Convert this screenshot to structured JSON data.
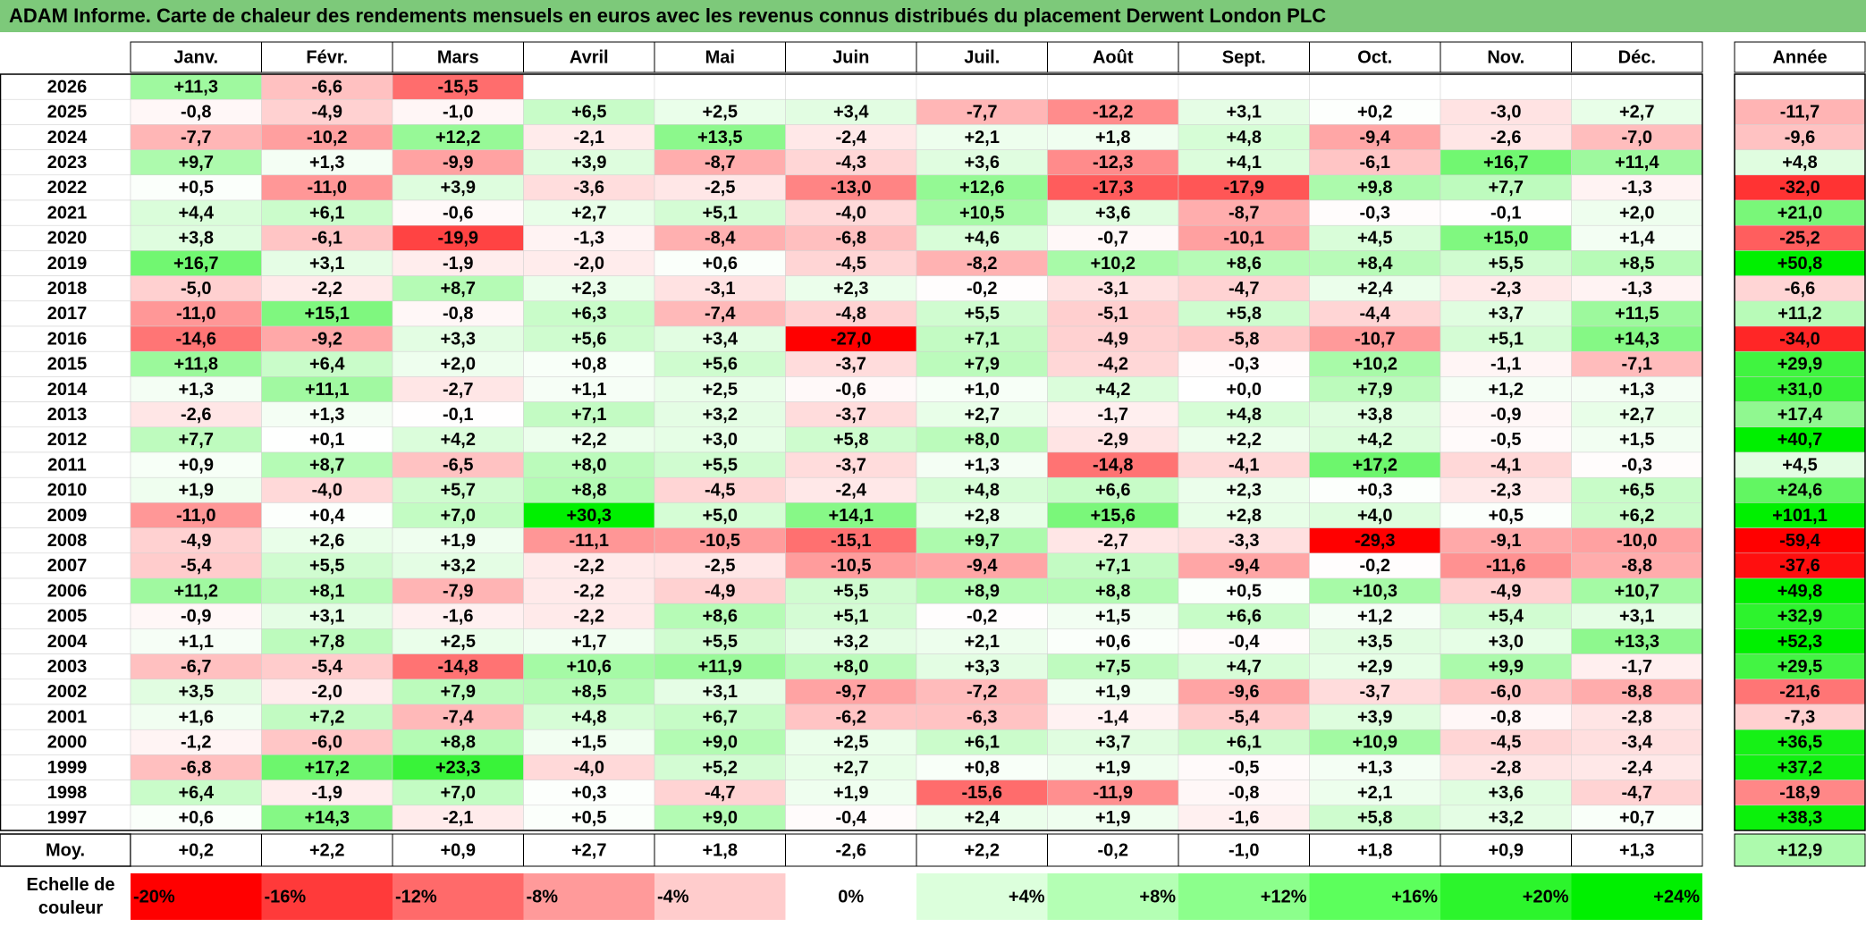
{
  "title": "ADAM Informe. Carte de chaleur des rendements mensuels en euros avec les revenus connus distribués du placement Derwent London PLC",
  "chart_data": {
    "type": "heatmap",
    "columns": [
      "Janv.",
      "Févr.",
      "Mars",
      "Avril",
      "Mai",
      "Juin",
      "Juil.",
      "Août",
      "Sept.",
      "Oct.",
      "Nov.",
      "Déc."
    ],
    "year_column_label": "Année",
    "rows": [
      {
        "year": "2026",
        "months": [
          "+11,3",
          "-6,6",
          "-15,5",
          "",
          "",
          "",
          "",
          "",
          "",
          "",
          "",
          ""
        ],
        "annual": ""
      },
      {
        "year": "2025",
        "months": [
          "-0,8",
          "-4,9",
          "-1,0",
          "+6,5",
          "+2,5",
          "+3,4",
          "-7,7",
          "-12,2",
          "+3,1",
          "+0,2",
          "-3,0",
          "+2,7"
        ],
        "annual": "-11,7"
      },
      {
        "year": "2024",
        "months": [
          "-7,7",
          "-10,2",
          "+12,2",
          "-2,1",
          "+13,5",
          "-2,4",
          "+2,1",
          "+1,8",
          "+4,8",
          "-9,4",
          "-2,6",
          "-7,0"
        ],
        "annual": "-9,6"
      },
      {
        "year": "2023",
        "months": [
          "+9,7",
          "+1,3",
          "-9,9",
          "+3,9",
          "-8,7",
          "-4,3",
          "+3,6",
          "-12,3",
          "+4,1",
          "-6,1",
          "+16,7",
          "+11,4"
        ],
        "annual": "+4,8"
      },
      {
        "year": "2022",
        "months": [
          "+0,5",
          "-11,0",
          "+3,9",
          "-3,6",
          "-2,5",
          "-13,0",
          "+12,6",
          "-17,3",
          "-17,9",
          "+9,8",
          "+7,7",
          "-1,3"
        ],
        "annual": "-32,0"
      },
      {
        "year": "2021",
        "months": [
          "+4,4",
          "+6,1",
          "-0,6",
          "+2,7",
          "+5,1",
          "-4,0",
          "+10,5",
          "+3,6",
          "-8,7",
          "-0,3",
          "-0,1",
          "+2,0"
        ],
        "annual": "+21,0"
      },
      {
        "year": "2020",
        "months": [
          "+3,8",
          "-6,1",
          "-19,9",
          "-1,3",
          "-8,4",
          "-6,8",
          "+4,6",
          "-0,7",
          "-10,1",
          "+4,5",
          "+15,0",
          "+1,4"
        ],
        "annual": "-25,2"
      },
      {
        "year": "2019",
        "months": [
          "+16,7",
          "+3,1",
          "-1,9",
          "-2,0",
          "+0,6",
          "-4,5",
          "-8,2",
          "+10,2",
          "+8,6",
          "+8,4",
          "+5,5",
          "+8,5"
        ],
        "annual": "+50,8"
      },
      {
        "year": "2018",
        "months": [
          "-5,0",
          "-2,2",
          "+8,7",
          "+2,3",
          "-3,1",
          "+2,3",
          "-0,2",
          "-3,1",
          "-4,7",
          "+2,4",
          "-2,3",
          "-1,3"
        ],
        "annual": "-6,6"
      },
      {
        "year": "2017",
        "months": [
          "-11,0",
          "+15,1",
          "-0,8",
          "+6,3",
          "-7,4",
          "-4,8",
          "+5,5",
          "-5,1",
          "+5,8",
          "-4,4",
          "+3,7",
          "+11,5"
        ],
        "annual": "+11,2"
      },
      {
        "year": "2016",
        "months": [
          "-14,6",
          "-9,2",
          "+3,3",
          "+5,6",
          "+3,4",
          "-27,0",
          "+7,1",
          "-4,9",
          "-5,8",
          "-10,7",
          "+5,1",
          "+14,3"
        ],
        "annual": "-34,0"
      },
      {
        "year": "2015",
        "months": [
          "+11,8",
          "+6,4",
          "+2,0",
          "+0,8",
          "+5,6",
          "-3,7",
          "+7,9",
          "-4,2",
          "-0,3",
          "+10,2",
          "-1,1",
          "-7,1"
        ],
        "annual": "+29,9"
      },
      {
        "year": "2014",
        "months": [
          "+1,3",
          "+11,1",
          "-2,7",
          "+1,1",
          "+2,5",
          "-0,6",
          "+1,0",
          "+4,2",
          "+0,0",
          "+7,9",
          "+1,2",
          "+1,3"
        ],
        "annual": "+31,0"
      },
      {
        "year": "2013",
        "months": [
          "-2,6",
          "+1,3",
          "-0,1",
          "+7,1",
          "+3,2",
          "-3,7",
          "+2,7",
          "-1,7",
          "+4,8",
          "+3,8",
          "-0,9",
          "+2,7"
        ],
        "annual": "+17,4"
      },
      {
        "year": "2012",
        "months": [
          "+7,7",
          "+0,1",
          "+4,2",
          "+2,2",
          "+3,0",
          "+5,8",
          "+8,0",
          "-2,9",
          "+2,2",
          "+4,2",
          "-0,5",
          "+1,5"
        ],
        "annual": "+40,7"
      },
      {
        "year": "2011",
        "months": [
          "+0,9",
          "+8,7",
          "-6,5",
          "+8,0",
          "+5,5",
          "-3,7",
          "+1,3",
          "-14,8",
          "-4,1",
          "+17,2",
          "-4,1",
          "-0,3"
        ],
        "annual": "+4,5"
      },
      {
        "year": "2010",
        "months": [
          "+1,9",
          "-4,0",
          "+5,7",
          "+8,8",
          "-4,5",
          "-2,4",
          "+4,8",
          "+6,6",
          "+2,3",
          "+0,3",
          "-2,3",
          "+6,5"
        ],
        "annual": "+24,6"
      },
      {
        "year": "2009",
        "months": [
          "-11,0",
          "+0,4",
          "+7,0",
          "+30,3",
          "+5,0",
          "+14,1",
          "+2,8",
          "+15,6",
          "+2,8",
          "+4,0",
          "+0,5",
          "+6,2"
        ],
        "annual": "+101,1"
      },
      {
        "year": "2008",
        "months": [
          "-4,9",
          "+2,6",
          "+1,9",
          "-11,1",
          "-10,5",
          "-15,1",
          "+9,7",
          "-2,7",
          "-3,3",
          "-29,3",
          "-9,1",
          "-10,0"
        ],
        "annual": "-59,4"
      },
      {
        "year": "2007",
        "months": [
          "-5,4",
          "+5,5",
          "+3,2",
          "-2,2",
          "-2,5",
          "-10,5",
          "-9,4",
          "+7,1",
          "-9,4",
          "-0,2",
          "-11,6",
          "-8,8"
        ],
        "annual": "-37,6"
      },
      {
        "year": "2006",
        "months": [
          "+11,2",
          "+8,1",
          "-7,9",
          "-2,2",
          "-4,9",
          "+5,5",
          "+8,9",
          "+8,8",
          "+0,5",
          "+10,3",
          "-4,9",
          "+10,7"
        ],
        "annual": "+49,8"
      },
      {
        "year": "2005",
        "months": [
          "-0,9",
          "+3,1",
          "-1,6",
          "-2,2",
          "+8,6",
          "+5,1",
          "-0,2",
          "+1,5",
          "+6,6",
          "+1,2",
          "+5,4",
          "+3,1"
        ],
        "annual": "+32,9"
      },
      {
        "year": "2004",
        "months": [
          "+1,1",
          "+7,8",
          "+2,5",
          "+1,7",
          "+5,5",
          "+3,2",
          "+2,1",
          "+0,6",
          "-0,4",
          "+3,5",
          "+3,0",
          "+13,3"
        ],
        "annual": "+52,3"
      },
      {
        "year": "2003",
        "months": [
          "-6,7",
          "-5,4",
          "-14,8",
          "+10,6",
          "+11,9",
          "+8,0",
          "+3,3",
          "+7,5",
          "+4,7",
          "+2,9",
          "+9,9",
          "-1,7"
        ],
        "annual": "+29,5"
      },
      {
        "year": "2002",
        "months": [
          "+3,5",
          "-2,0",
          "+7,9",
          "+8,5",
          "+3,1",
          "-9,7",
          "-7,2",
          "+1,9",
          "-9,6",
          "-3,7",
          "-6,0",
          "-8,8"
        ],
        "annual": "-21,6"
      },
      {
        "year": "2001",
        "months": [
          "+1,6",
          "+7,2",
          "-7,4",
          "+4,8",
          "+6,7",
          "-6,2",
          "-6,3",
          "-1,4",
          "-5,4",
          "+3,9",
          "-0,8",
          "-2,8"
        ],
        "annual": "-7,3"
      },
      {
        "year": "2000",
        "months": [
          "-1,2",
          "-6,0",
          "+8,8",
          "+1,5",
          "+9,0",
          "+2,5",
          "+6,1",
          "+3,7",
          "+6,1",
          "+10,9",
          "-4,5",
          "-3,4"
        ],
        "annual": "+36,5"
      },
      {
        "year": "1999",
        "months": [
          "-6,8",
          "+17,2",
          "+23,3",
          "-4,0",
          "+5,2",
          "+2,7",
          "+0,8",
          "+1,9",
          "-0,5",
          "+1,3",
          "-2,8",
          "-2,4"
        ],
        "annual": "+37,2"
      },
      {
        "year": "1998",
        "months": [
          "+6,4",
          "-1,9",
          "+7,0",
          "+0,3",
          "-4,7",
          "+1,9",
          "-15,6",
          "-11,9",
          "-0,8",
          "+2,1",
          "+3,6",
          "-4,7"
        ],
        "annual": "-18,9"
      },
      {
        "year": "1997",
        "months": [
          "+0,6",
          "+14,3",
          "-2,1",
          "+0,5",
          "+9,0",
          "-0,4",
          "+2,4",
          "+1,9",
          "-1,6",
          "+5,8",
          "+3,2",
          "+0,7"
        ],
        "annual": "+38,3"
      }
    ],
    "average": {
      "label": "Moy.",
      "months": [
        "+0,2",
        "+2,2",
        "+0,9",
        "+2,7",
        "+1,8",
        "-2,6",
        "+2,2",
        "-0,2",
        "-1,0",
        "+1,8",
        "+0,9",
        "+1,3"
      ],
      "annual": "+12,9"
    },
    "scale": {
      "label": "Echelle de couleur",
      "items": [
        "-20%",
        "-16%",
        "-12%",
        "-8%",
        "-4%",
        "0%",
        "+4%",
        "+8%",
        "+12%",
        "+16%",
        "+20%",
        "+24%"
      ],
      "colors": [
        "#ff0000",
        "#ff3a3a",
        "#ff6a6a",
        "#ff9a9a",
        "#ffcccc",
        "#ffffff",
        "#dcffdc",
        "#b4ffb4",
        "#8cff8c",
        "#5cff5c",
        "#2cf52c",
        "#00f000"
      ]
    }
  }
}
